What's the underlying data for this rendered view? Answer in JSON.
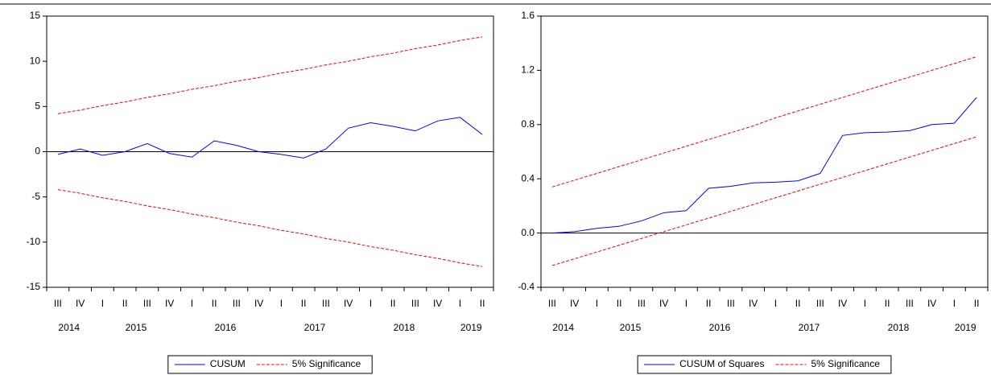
{
  "chart_data": [
    {
      "type": "line",
      "categories": [
        "III",
        "IV",
        "I",
        "II",
        "III",
        "IV",
        "I",
        "II",
        "III",
        "IV",
        "I",
        "II",
        "III",
        "IV",
        "I",
        "II",
        "III",
        "IV",
        "I",
        "II"
      ],
      "years": [
        "2014",
        "2015",
        "2016",
        "2017",
        "2018",
        "2019"
      ],
      "series": [
        {
          "name": "CUSUM",
          "color": "#0000ff",
          "values": [
            -0.3,
            0.3,
            -0.4,
            0.0,
            0.9,
            -0.2,
            -0.6,
            1.2,
            0.7,
            0.0,
            -0.3,
            -0.7,
            0.3,
            2.6,
            3.2,
            2.8,
            2.3,
            3.4,
            3.8,
            1.9
          ]
        },
        {
          "name": "5% Significance",
          "color": "#ff0000",
          "dashed": true,
          "values": [
            4.2,
            4.6,
            5.1,
            5.5,
            6.0,
            6.4,
            6.9,
            7.3,
            7.8,
            8.2,
            8.7,
            9.1,
            9.6,
            10.0,
            10.5,
            10.9,
            11.4,
            11.8,
            12.3,
            12.7
          ],
          "lower_values": [
            -4.2,
            -4.6,
            -5.1,
            -5.5,
            -6.0,
            -6.4,
            -6.9,
            -7.3,
            -7.8,
            -8.2,
            -8.7,
            -9.1,
            -9.6,
            -10.0,
            -10.5,
            -10.9,
            -11.4,
            -11.8,
            -12.3,
            -12.7
          ]
        }
      ],
      "ylim": [
        -15,
        15
      ],
      "yticks": [
        15,
        10,
        5,
        0,
        -5,
        -10,
        -15
      ],
      "zero_line": true
    },
    {
      "type": "line",
      "categories": [
        "III",
        "IV",
        "I",
        "II",
        "III",
        "IV",
        "I",
        "II",
        "III",
        "IV",
        "I",
        "II",
        "III",
        "IV",
        "I",
        "II",
        "III",
        "IV",
        "I",
        "II"
      ],
      "years": [
        "2014",
        "2015",
        "2016",
        "2017",
        "2018",
        "2019"
      ],
      "series": [
        {
          "name": "CUSUM of Squares",
          "color": "#0000ff",
          "values": [
            0.0,
            0.01,
            0.035,
            0.05,
            0.09,
            0.15,
            0.165,
            0.33,
            0.345,
            0.37,
            0.375,
            0.385,
            0.44,
            0.72,
            0.74,
            0.745,
            0.755,
            0.8,
            0.81,
            1.0
          ]
        },
        {
          "name": "5% Significance",
          "color": "#ff0000",
          "dashed": true,
          "values": [
            0.34,
            0.39,
            0.44,
            0.49,
            0.54,
            0.59,
            0.64,
            0.69,
            0.74,
            0.79,
            0.85,
            0.9,
            0.95,
            1.0,
            1.05,
            1.1,
            1.15,
            1.2,
            1.25,
            1.3
          ],
          "lower_values": [
            -0.24,
            -0.19,
            -0.14,
            -0.09,
            -0.04,
            0.01,
            0.06,
            0.11,
            0.16,
            0.21,
            0.26,
            0.31,
            0.36,
            0.41,
            0.46,
            0.51,
            0.56,
            0.61,
            0.66,
            0.71
          ]
        }
      ],
      "ylim": [
        -0.4,
        1.6
      ],
      "yticks": [
        1.6,
        1.2,
        0.8,
        0.4,
        {
          "value": 0,
          "label": "0.0"
        },
        -0.4
      ],
      "zero_line": true
    }
  ]
}
